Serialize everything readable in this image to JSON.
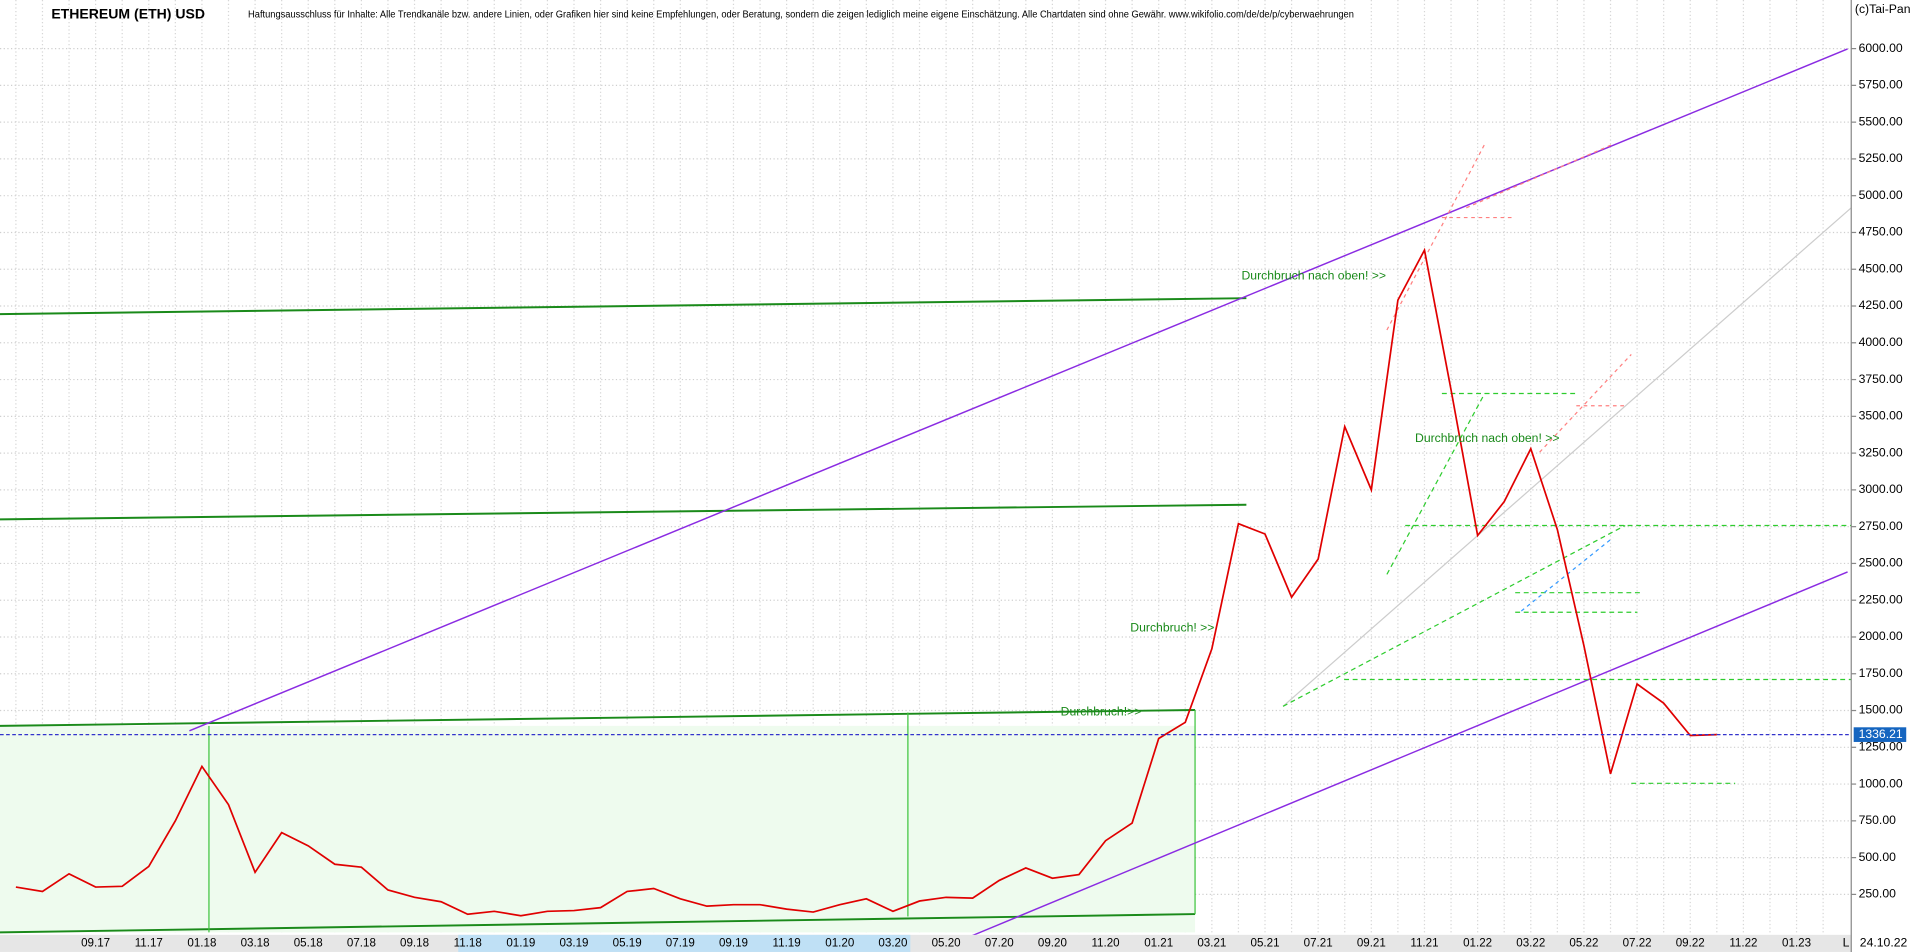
{
  "chart_data": {
    "type": "line",
    "title": "ETHEREUM (ETH) USD",
    "subtitle": "Haftungsausschluss für Inhalte: Alle Trendkanäle bzw. andere Linien, oder Grafiken hier sind keine Empfehlungen, oder Beratung, sondern die zeigen lediglich meine eigene Einschätzung. Alle Chartdaten sind ohne Gewähr. www.wikifolio.com/de/de/p/cyberwaehrungen",
    "copyright": "(c)Tai-Pan",
    "categories": [
      null,
      null,
      null,
      "09.17",
      null,
      "11.17",
      null,
      "01.18",
      null,
      "03.18",
      null,
      "05.18",
      null,
      "07.18",
      null,
      "09.18",
      null,
      "11.18",
      null,
      "01.19",
      null,
      "03.19",
      null,
      "05.19",
      null,
      "07.19",
      null,
      "09.19",
      null,
      "11.19",
      null,
      "01.20",
      null,
      "03.20",
      null,
      "05.20",
      null,
      "07.20",
      null,
      "09.20",
      null,
      "11.20",
      null,
      "01.21",
      null,
      "03.21",
      null,
      "05.21",
      null,
      "07.21",
      null,
      "09.21",
      null,
      "11.21",
      null,
      "01.22",
      null,
      "03.22",
      null,
      "05.22",
      null,
      "07.22",
      null,
      "09.22",
      null,
      "11.22",
      null,
      "01.23",
      null
    ],
    "series": [
      {
        "name": "ETH/USD",
        "color": "#e00000",
        "values": [
          300,
          270,
          390,
          300,
          305,
          440,
          750,
          1120,
          860,
          400,
          670,
          580,
          455,
          435,
          280,
          230,
          200,
          115,
          135,
          105,
          135,
          140,
          160,
          270,
          290,
          220,
          170,
          180,
          180,
          150,
          130,
          180,
          220,
          135,
          205,
          230,
          225,
          345,
          430,
          360,
          385,
          615,
          735,
          1310,
          1420,
          1920,
          2770,
          2700,
          2270,
          2530,
          3430,
          3000,
          4290,
          4630,
          3680,
          2690,
          2920,
          3280,
          2730,
          1940,
          1070,
          1680,
          1550,
          1330,
          1336,
          null,
          null,
          null,
          null
        ]
      }
    ],
    "ylim": [
      0,
      6330
    ],
    "yticks": [
      {
        "value": 250,
        "label": "250.00"
      },
      {
        "value": 500,
        "label": "500.00"
      },
      {
        "value": 750,
        "label": "750.00"
      },
      {
        "value": 1000,
        "label": "1000.00"
      },
      {
        "value": 1250,
        "label": "1250.00"
      },
      {
        "value": 1500,
        "label": "1500.00"
      },
      {
        "value": 1750,
        "label": "1750.00"
      },
      {
        "value": 2000,
        "label": "2000.00"
      },
      {
        "value": 2250,
        "label": "2250.00"
      },
      {
        "value": 2500,
        "label": "2500.00"
      },
      {
        "value": 2750,
        "label": "2750.00"
      },
      {
        "value": 3000,
        "label": "3000.00"
      },
      {
        "value": 3250,
        "label": "3250.00"
      },
      {
        "value": 3500,
        "label": "3500.00"
      },
      {
        "value": 3750,
        "label": "3750.00"
      },
      {
        "value": 4000,
        "label": "4000.00"
      },
      {
        "value": 4250,
        "label": "4250.00"
      },
      {
        "value": 4500,
        "label": "4500.00"
      },
      {
        "value": 4750,
        "label": "4750.00"
      },
      {
        "value": 5000,
        "label": "5000.00"
      },
      {
        "value": 5250,
        "label": "5250.00"
      },
      {
        "value": 5500,
        "label": "5500.00"
      },
      {
        "value": 5750,
        "label": "5750.00"
      },
      {
        "value": 6000,
        "label": "6000.00"
      }
    ],
    "grid": true,
    "last_price": 1336.21,
    "last_date": "24.10.22",
    "scale_mode": "L",
    "annotations": [
      "Durchbruch nach oben! >>",
      "Durchbruch nach oben! >>",
      "Durchbruch! >>",
      "Durchbruch!>>"
    ]
  }
}
